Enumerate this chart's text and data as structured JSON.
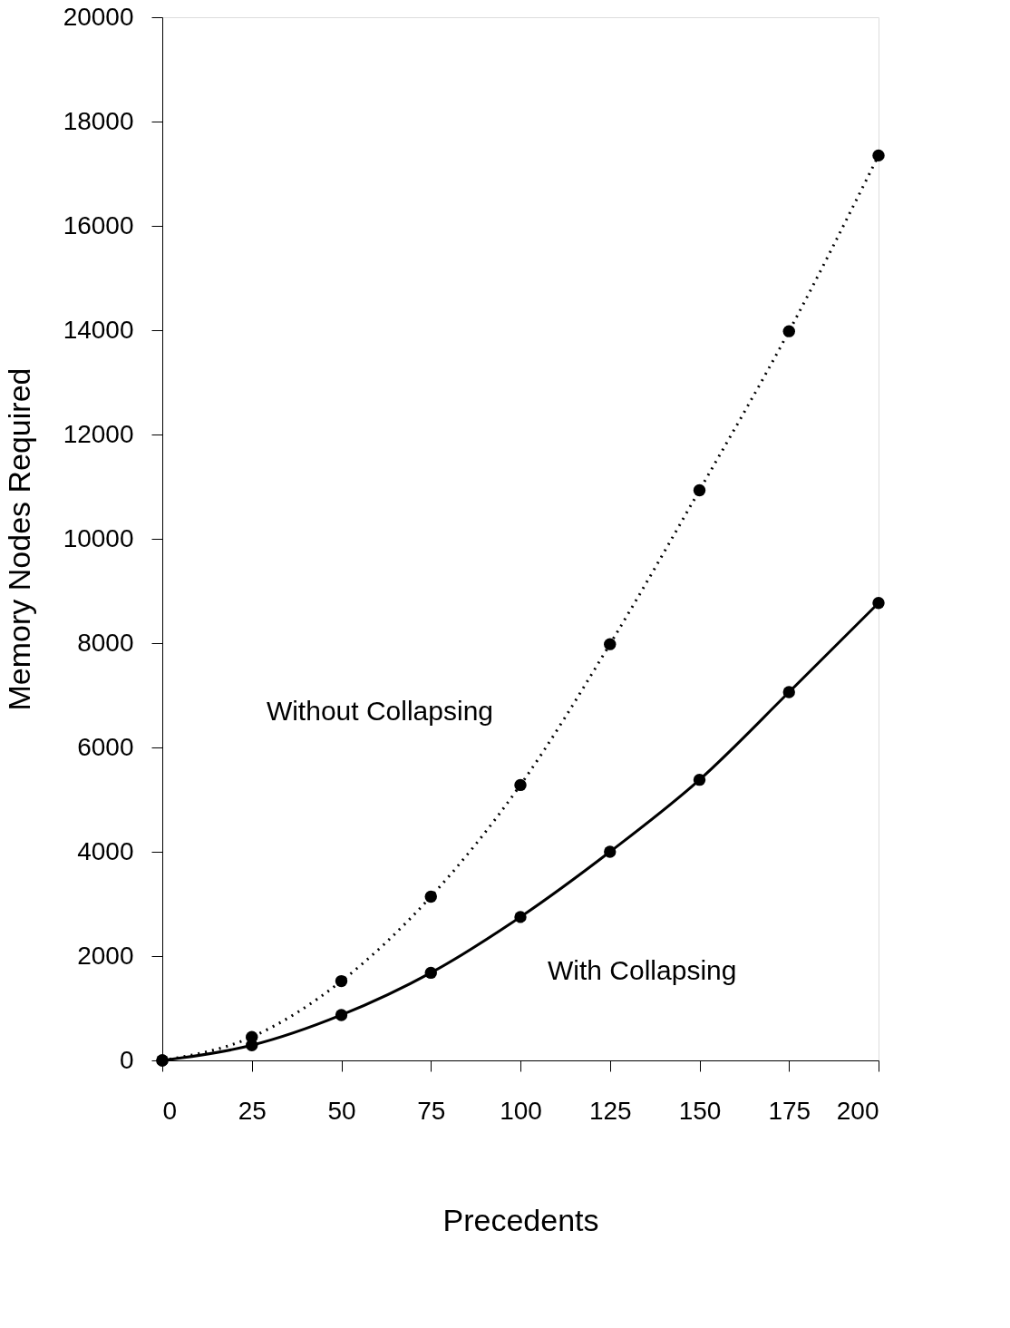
{
  "chart_data": {
    "type": "line",
    "xlabel": "Precedents",
    "ylabel": "Memory Nodes Required",
    "x": [
      0,
      25,
      50,
      75,
      100,
      125,
      150,
      175,
      200
    ],
    "series": [
      {
        "name": "Without Collapsing",
        "color": "#000000",
        "line_style": "dotted",
        "values": [
          0,
          450,
          1520,
          3140,
          5280,
          7980,
          10930,
          13980,
          17350
        ]
      },
      {
        "name": "With Collapsing",
        "color": "#000000",
        "line_style": "solid",
        "values": [
          0,
          290,
          870,
          1680,
          2750,
          4000,
          5380,
          7060,
          8770
        ]
      }
    ],
    "xlim": [
      0,
      200
    ],
    "xticks": [
      0,
      25,
      50,
      75,
      100,
      125,
      150,
      175,
      200
    ],
    "ylim": [
      0,
      20000
    ],
    "yticks": [
      0,
      2000,
      4000,
      6000,
      8000,
      10000,
      12000,
      14000,
      16000,
      18000,
      20000
    ],
    "grid": false,
    "marker": "circle"
  }
}
